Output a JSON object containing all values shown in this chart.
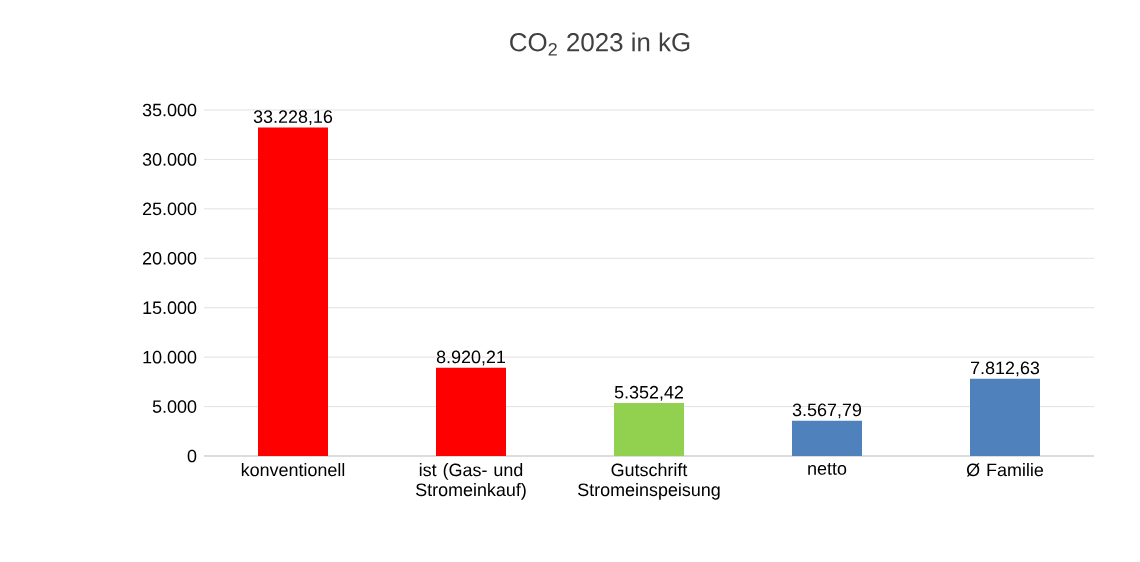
{
  "chart_data": {
    "type": "bar",
    "title": "CO$_{2}$ 2023 in kG",
    "categories": [
      "konventionell",
      "ist (Gas- und Stromeinkauf)",
      "Gutschrift Stromeinspeisung",
      "netto",
      "Ø Familie"
    ],
    "values": [
      33228.16,
      8920.21,
      5352.42,
      3567.79,
      7812.63
    ],
    "colors": [
      "#ff0000",
      "#ff0000",
      "#92d050",
      "#4f81bd",
      "#4f81bd"
    ],
    "value_labels": [
      "33.228,16",
      "8.920,21",
      "5.352,42",
      "3.567,79",
      "7.812,63"
    ],
    "ylim": [
      0,
      35000
    ],
    "yticks": [
      {
        "value": 0,
        "label": "0"
      },
      {
        "value": 5000,
        "label": "5.000"
      },
      {
        "value": 10000,
        "label": "10.000"
      },
      {
        "value": 15000,
        "label": "15.000"
      },
      {
        "value": 20000,
        "label": "20.000"
      },
      {
        "value": 25000,
        "label": "25.000"
      },
      {
        "value": 30000,
        "label": "30.000"
      },
      {
        "value": 35000,
        "label": "35.000"
      }
    ],
    "grid": "y"
  }
}
